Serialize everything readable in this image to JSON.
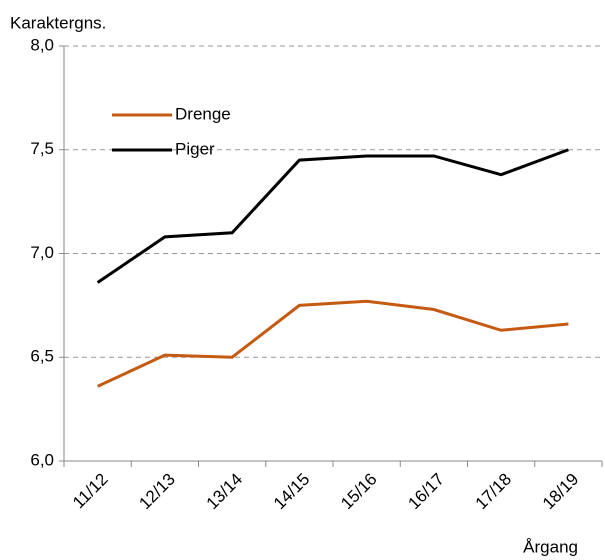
{
  "chart_data": {
    "type": "line",
    "ylabel": "Karaktergns.",
    "xlabel": "Årgang",
    "categories": [
      "11/12",
      "12/13",
      "13/14",
      "14/15",
      "15/16",
      "16/17",
      "17/18",
      "18/19"
    ],
    "series": [
      {
        "name": "Drenge",
        "color": "#c55a11",
        "values": [
          6.36,
          6.51,
          6.5,
          6.75,
          6.77,
          6.73,
          6.63,
          6.66
        ]
      },
      {
        "name": "Piger",
        "color": "#000000",
        "values": [
          6.86,
          7.08,
          7.1,
          7.45,
          7.47,
          7.47,
          7.38,
          7.5
        ]
      }
    ],
    "ylim": [
      6.0,
      8.0
    ],
    "yticks": [
      {
        "value": 6.0,
        "label": "6,0"
      },
      {
        "value": 6.5,
        "label": "6,5"
      },
      {
        "value": 7.0,
        "label": "7,0"
      },
      {
        "value": 7.5,
        "label": "7,5"
      },
      {
        "value": 8.0,
        "label": "8,0"
      }
    ],
    "grid": true,
    "legend": "upper left"
  }
}
